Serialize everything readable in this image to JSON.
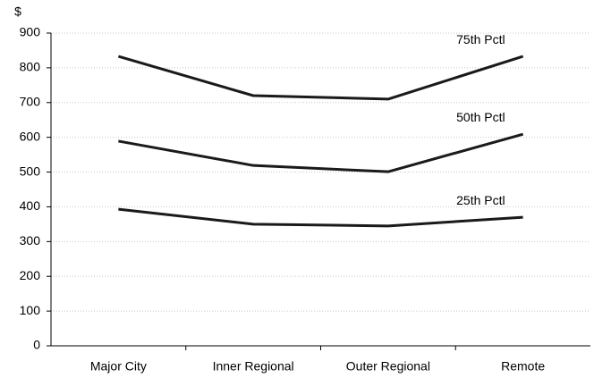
{
  "chart_data": {
    "type": "line",
    "y_label": "$",
    "categories": [
      "Major City",
      "Inner Regional",
      "Outer Regional",
      "Remote"
    ],
    "series": [
      {
        "name": "75th Pctl",
        "color": "#1a1a1a",
        "values": [
          833,
          720,
          710,
          833
        ]
      },
      {
        "name": "50th Pctl",
        "color": "#1a1a1a",
        "values": [
          589,
          519,
          501,
          609
        ]
      },
      {
        "name": "25th Pctl",
        "color": "#1a1a1a",
        "values": [
          393,
          350,
          345,
          370
        ]
      }
    ],
    "ylim": [
      0,
      900
    ],
    "yticks": [
      0,
      100,
      200,
      300,
      400,
      500,
      600,
      700,
      800,
      900
    ],
    "grid": true
  }
}
